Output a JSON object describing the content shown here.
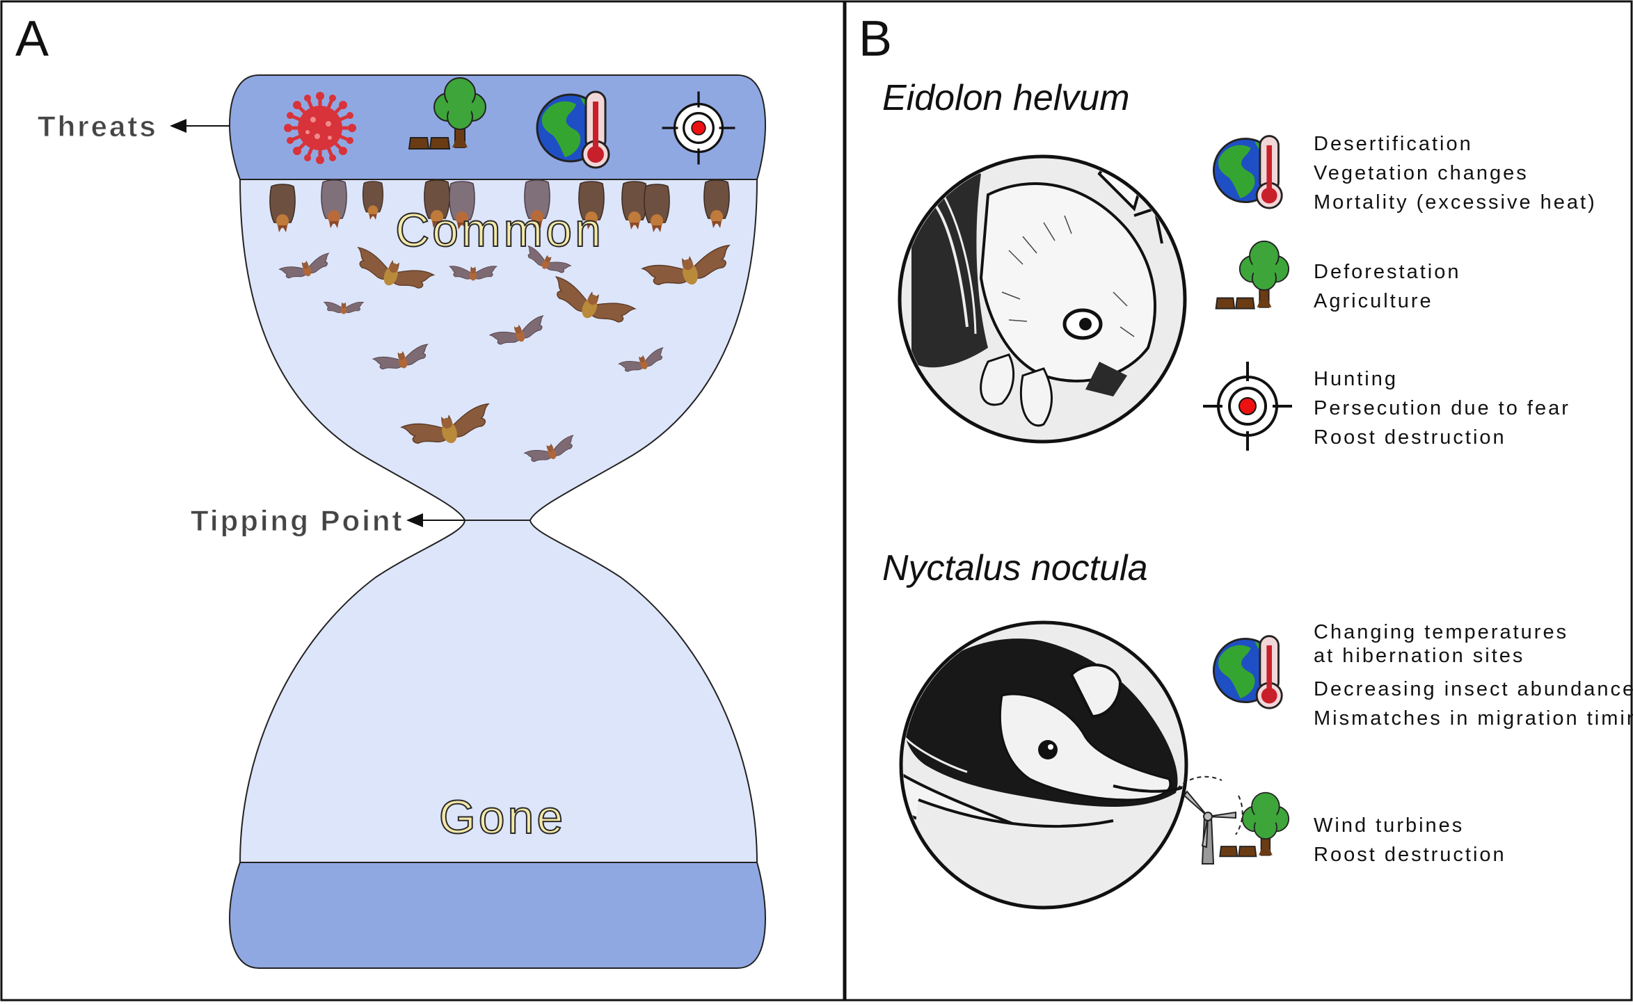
{
  "panel_a": {
    "letter": "A",
    "threats_label": "Threats",
    "tipping_label": "Tipping Point",
    "common_label": "Common",
    "gone_label": "Gone",
    "threat_icons": [
      "virus-icon",
      "deforestation-icon",
      "climate-thermometer-icon",
      "target-icon"
    ]
  },
  "panel_b": {
    "letter": "B",
    "species": [
      {
        "name": "Eidolon helvum",
        "groups": [
          {
            "icon": "climate-thermometer-icon",
            "lines": [
              "Desertification",
              "Vegetation changes",
              "Mortality (excessive heat)"
            ]
          },
          {
            "icon": "deforestation-icon",
            "lines": [
              "Deforestation",
              "Agriculture"
            ]
          },
          {
            "icon": "target-icon",
            "lines": [
              "Hunting",
              "Persecution due to fear",
              "Roost destruction"
            ]
          }
        ]
      },
      {
        "name": "Nyctalus noctula",
        "groups": [
          {
            "icon": "climate-thermometer-icon",
            "lines": [
              "Changing temperatures",
              "at hibernation sites",
              "Decreasing insect abundance",
              "Mismatches in migration timing"
            ]
          },
          {
            "icon": "wind-turbine-deforestation-icon",
            "lines": [
              "Wind turbines",
              "Roost destruction"
            ]
          }
        ]
      }
    ]
  },
  "colors": {
    "glass_band": "#90a8e2",
    "glass_fill": "#dde5fa",
    "bat_brown": "#8a5a3c",
    "bat_grey": "#7e6a72",
    "globe_blue": "#1f4fc4",
    "globe_green": "#35a532",
    "thermo_red": "#c8202a",
    "virus_red": "#d8333a",
    "tree_green": "#3ea53a",
    "trunk_brown": "#6b3c14",
    "target_red": "#ee1111"
  }
}
